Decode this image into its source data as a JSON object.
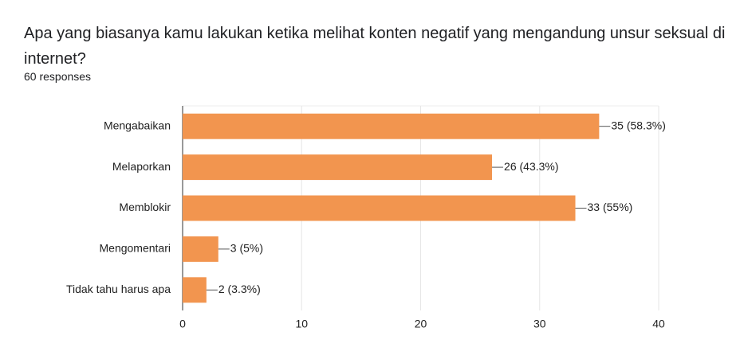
{
  "chart_data": {
    "type": "bar",
    "orientation": "horizontal",
    "title": "Apa yang biasanya kamu lakukan ketika melihat konten negatif yang mengandung unsur seksual di internet?",
    "subtitle": "60 responses",
    "categories": [
      "Mengabaikan",
      "Melaporkan",
      "Memblokir",
      "Mengomentari",
      "Tidak tahu harus apa"
    ],
    "values": [
      35,
      26,
      33,
      3,
      2
    ],
    "value_labels": [
      "35 (58.3%)",
      "26 (43.3%)",
      "33 (55%)",
      "3 (5%)",
      "2 (3.3%)"
    ],
    "color": "#f2954f",
    "xlim": [
      0,
      40
    ],
    "xticks": [
      0,
      10,
      20,
      30,
      40
    ],
    "grid": true
  }
}
